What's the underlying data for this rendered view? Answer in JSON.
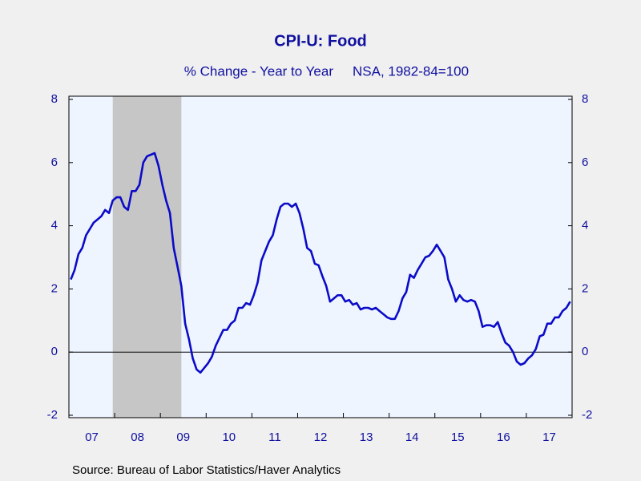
{
  "chart_data": {
    "type": "line",
    "title": "CPI-U: Food",
    "subtitle": [
      "% Change - Year to Year",
      "NSA, 1982-84=100"
    ],
    "source": "Source:  Bureau of Labor Statistics/Haver Analytics",
    "categories": [
      null,
      null,
      null,
      null,
      null,
      null,
      "07",
      null,
      null,
      null,
      null,
      null,
      null,
      null,
      null,
      null,
      null,
      null,
      "08",
      null,
      null,
      null,
      null,
      null,
      null,
      null,
      null,
      null,
      null,
      null,
      "09",
      null,
      null,
      null,
      null,
      null,
      null,
      null,
      null,
      null,
      null,
      null,
      "10",
      null,
      null,
      null,
      null,
      null,
      null,
      null,
      null,
      null,
      null,
      null,
      "11",
      null,
      null,
      null,
      null,
      null,
      null,
      null,
      null,
      null,
      null,
      null,
      "12",
      null,
      null,
      null,
      null,
      null,
      null,
      null,
      null,
      null,
      null,
      null,
      "13",
      null,
      null,
      null,
      null,
      null,
      null,
      null,
      null,
      null,
      null,
      null,
      "14",
      null,
      null,
      null,
      null,
      null,
      null,
      null,
      null,
      null,
      null,
      null,
      "15",
      null,
      null,
      null,
      null,
      null,
      null,
      null,
      null,
      null,
      null,
      null,
      "16",
      null,
      null,
      null,
      null,
      null,
      null,
      null,
      null,
      null,
      null,
      null,
      "17",
      null,
      null,
      null,
      null,
      null
    ],
    "series": [
      {
        "name": "CPI-U: Food",
        "color": "#0b0bc8",
        "values": [
          2.3,
          2.6,
          3.1,
          3.3,
          3.7,
          3.9,
          4.1,
          4.2,
          4.3,
          4.5,
          4.4,
          4.8,
          4.9,
          4.9,
          4.6,
          4.5,
          5.1,
          5.1,
          5.3,
          6.0,
          6.2,
          6.25,
          6.3,
          5.9,
          5.3,
          4.8,
          4.4,
          3.3,
          2.7,
          2.1,
          0.9,
          0.4,
          -0.2,
          -0.55,
          -0.65,
          -0.5,
          -0.35,
          -0.15,
          0.2,
          0.45,
          0.7,
          0.7,
          0.9,
          1.0,
          1.4,
          1.4,
          1.55,
          1.5,
          1.8,
          2.2,
          2.9,
          3.2,
          3.5,
          3.7,
          4.2,
          4.6,
          4.7,
          4.7,
          4.6,
          4.7,
          4.4,
          3.9,
          3.3,
          3.2,
          2.8,
          2.75,
          2.4,
          2.1,
          1.6,
          1.7,
          1.8,
          1.8,
          1.6,
          1.65,
          1.5,
          1.55,
          1.35,
          1.4,
          1.4,
          1.35,
          1.4,
          1.3,
          1.2,
          1.1,
          1.05,
          1.05,
          1.3,
          1.7,
          1.9,
          2.45,
          2.35,
          2.6,
          2.8,
          3.0,
          3.05,
          3.2,
          3.4,
          3.2,
          3.0,
          2.3,
          2.0,
          1.6,
          1.8,
          1.65,
          1.6,
          1.65,
          1.6,
          1.3,
          0.8,
          0.85,
          0.85,
          0.8,
          0.95,
          0.6,
          0.3,
          0.2,
          0.0,
          -0.3,
          -0.4,
          -0.35,
          -0.2,
          -0.1,
          0.1,
          0.5,
          0.55,
          0.9,
          0.9,
          1.1,
          1.1,
          1.3,
          1.4,
          1.6
        ]
      }
    ],
    "ylim": [
      -2,
      8
    ],
    "yticks": [
      -2,
      0,
      2,
      4,
      6,
      8
    ],
    "y2lim": [
      -2,
      8
    ],
    "y2ticks": [
      -2,
      0,
      2,
      4,
      6,
      8
    ],
    "shaded_ranges": [
      [
        11,
        29
      ]
    ],
    "shade_color": "#c6c6c6",
    "plot_background": "#eef5ff"
  }
}
